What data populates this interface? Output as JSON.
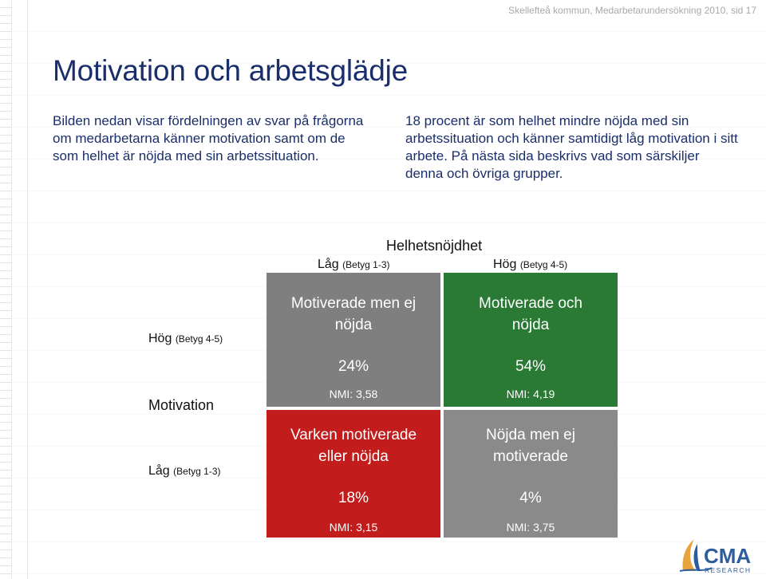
{
  "header": {
    "meta": "Skellefteå kommun, Medarbetarundersökning 2010, sid 17"
  },
  "title": "Motivation och arbetsglädje",
  "intro": {
    "left": "Bilden nedan visar fördelningen av svar på frågorna om medarbetarna känner motivation samt om de som helhet är nöjda med sin arbetssituation.",
    "right": "18 procent är som helhet mindre nöjda med sin arbetssituation och känner samtidigt låg motivation i sitt arbete. På nästa sida beskrivs vad som särskiljer denna och övriga grupper."
  },
  "matrix": {
    "x_title": "Helhetsnöjdhet",
    "x_low": {
      "main": "Låg",
      "sub": "(Betyg 1-3)"
    },
    "x_high": {
      "main": "Hög",
      "sub": "(Betyg 4-5)"
    },
    "y_title": "Motivation",
    "y_high": {
      "main": "Hög",
      "sub": "(Betyg 4-5)"
    },
    "y_low": {
      "main": "Låg",
      "sub": "(Betyg 1-3)"
    },
    "cells": {
      "top_left": {
        "label_line1": "Motiverade men ej",
        "label_line2": "nöjda",
        "pct": "24%",
        "nmi": "NMI: 3,58",
        "color": "#7f7f7f"
      },
      "top_right": {
        "label_line1": "Motiverade och",
        "label_line2": "nöjda",
        "pct": "54%",
        "nmi": "NMI: 4,19",
        "color": "#2a7a35"
      },
      "bottom_left": {
        "label_line1": "Varken motiverade",
        "label_line2": "eller nöjda",
        "pct": "18%",
        "nmi": "NMI: 3,15",
        "color": "#c21c1c"
      },
      "bottom_right": {
        "label_line1": "Nöjda men ej",
        "label_line2": "motiverade",
        "pct": "4%",
        "nmi": "NMI: 3,75",
        "color": "#8a8a8a"
      }
    }
  },
  "logo": {
    "name": "CMA",
    "tagline": "RESEARCH",
    "icon": "sail-logo-icon"
  }
}
